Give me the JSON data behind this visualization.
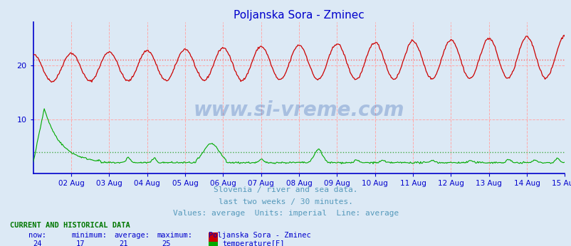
{
  "title": "Poljanska Sora - Zminec",
  "title_color": "#0000cc",
  "bg_color": "#dce9f5",
  "plot_bg_color": "#dce9f5",
  "x_labels": [
    "02 Aug",
    "03 Aug",
    "04 Aug",
    "05 Aug",
    "06 Aug",
    "07 Aug",
    "08 Aug",
    "09 Aug",
    "10 Aug",
    "11 Aug",
    "12 Aug",
    "13 Aug",
    "14 Aug",
    "15 Aug"
  ],
  "ylim": [
    0,
    28
  ],
  "yticks": [
    10,
    20
  ],
  "temp_avg": 21,
  "temp_min": 17,
  "temp_max": 25,
  "temp_now": 24,
  "flow_avg": 4,
  "flow_min": 3,
  "flow_max": 12,
  "flow_now": 3,
  "temp_color": "#cc0000",
  "flow_color": "#00aa00",
  "grid_color": "#ffaaaa",
  "axis_color": "#0000cc",
  "subtitle1": "Slovenia / river and sea data.",
  "subtitle2": "last two weeks / 30 minutes.",
  "subtitle3": "Values: average  Units: imperial  Line: average",
  "subtitle_color": "#5599bb",
  "table_header": "CURRENT AND HISTORICAL DATA",
  "table_header_color": "#007700",
  "col_header_color": "#0000cc",
  "n_points": 672
}
